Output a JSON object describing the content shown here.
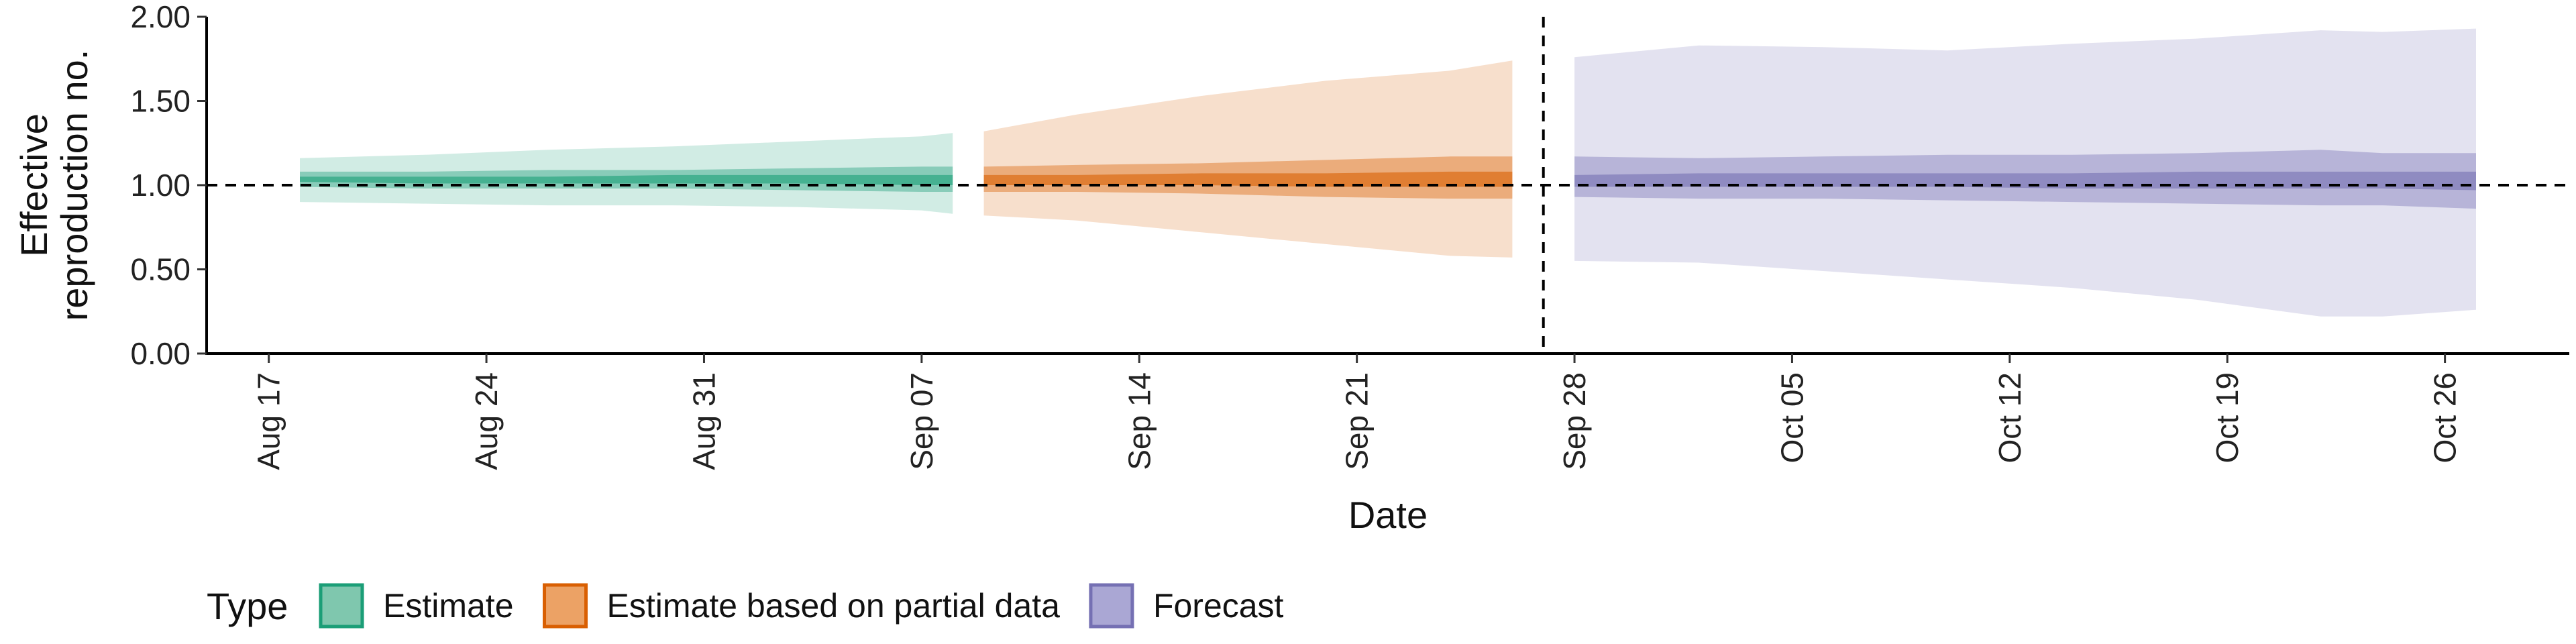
{
  "chart_data": {
    "type": "area",
    "xlabel": "Date",
    "ylabel_lines": [
      "Effective",
      "reproduction no."
    ],
    "ylim": [
      0,
      2
    ],
    "xlim": [
      "2020-08-15",
      "2020-10-30"
    ],
    "y_ticks": [
      0,
      0.5,
      1,
      1.5,
      2
    ],
    "y_tick_labels": [
      "0.00",
      "0.50",
      "1.00",
      "1.50",
      "2.00"
    ],
    "x_ticks": [
      "2020-08-17",
      "2020-08-24",
      "2020-08-31",
      "2020-09-07",
      "2020-09-14",
      "2020-09-21",
      "2020-09-28",
      "2020-10-05",
      "2020-10-12",
      "2020-10-19",
      "2020-10-26"
    ],
    "x_tick_labels": [
      "Aug 17",
      "Aug 24",
      "Aug 31",
      "Sep 07",
      "Sep 14",
      "Sep 21",
      "Sep 28",
      "Oct 05",
      "Oct 12",
      "Oct 19",
      "Oct 26"
    ],
    "reference_line_y": 1,
    "vertical_line_date": "2020-09-27",
    "grid": false,
    "legend": {
      "title": "Type",
      "position": "bottom",
      "entries": [
        {
          "label": "Estimate",
          "fill": "#7fc7ae",
          "stroke": "#1b9e77"
        },
        {
          "label": "Estimate based on partial data",
          "fill": "#eca265",
          "stroke": "#d95f02"
        },
        {
          "label": "Forecast",
          "fill": "#aaa7d4",
          "stroke": "#7570b3"
        }
      ]
    },
    "series": [
      {
        "name": "Estimate",
        "color": "#1b9e77",
        "points": [
          {
            "date": "2020-08-18",
            "lo90": 0.9,
            "lo50": 0.99,
            "lo20": 1.02,
            "hi20": 1.05,
            "hi50": 1.08,
            "hi90": 1.16
          },
          {
            "date": "2020-08-22",
            "lo90": 0.89,
            "lo50": 0.98,
            "lo20": 1.01,
            "hi20": 1.05,
            "hi50": 1.08,
            "hi90": 1.18
          },
          {
            "date": "2020-08-26",
            "lo90": 0.88,
            "lo50": 0.98,
            "lo20": 1.01,
            "hi20": 1.05,
            "hi50": 1.09,
            "hi90": 1.21
          },
          {
            "date": "2020-08-30",
            "lo90": 0.88,
            "lo50": 0.98,
            "lo20": 1.01,
            "hi20": 1.06,
            "hi50": 1.09,
            "hi90": 1.23
          },
          {
            "date": "2020-09-03",
            "lo90": 0.87,
            "lo50": 0.97,
            "lo20": 1.01,
            "hi20": 1.06,
            "hi50": 1.1,
            "hi90": 1.26
          },
          {
            "date": "2020-09-07",
            "lo90": 0.85,
            "lo50": 0.96,
            "lo20": 1.0,
            "hi20": 1.06,
            "hi50": 1.11,
            "hi90": 1.29
          },
          {
            "date": "2020-09-08",
            "lo90": 0.83,
            "lo50": 0.96,
            "lo20": 1.0,
            "hi20": 1.06,
            "hi50": 1.11,
            "hi90": 1.31
          }
        ]
      },
      {
        "name": "Estimate based on partial data",
        "color": "#d95f02",
        "points": [
          {
            "date": "2020-09-09",
            "lo90": 0.82,
            "lo50": 0.96,
            "lo20": 1.0,
            "hi20": 1.06,
            "hi50": 1.11,
            "hi90": 1.32
          },
          {
            "date": "2020-09-12",
            "lo90": 0.79,
            "lo50": 0.96,
            "lo20": 1.0,
            "hi20": 1.06,
            "hi50": 1.12,
            "hi90": 1.42
          },
          {
            "date": "2020-09-16",
            "lo90": 0.72,
            "lo50": 0.95,
            "lo20": 1.0,
            "hi20": 1.07,
            "hi50": 1.13,
            "hi90": 1.53
          },
          {
            "date": "2020-09-20",
            "lo90": 0.65,
            "lo50": 0.93,
            "lo20": 0.99,
            "hi20": 1.07,
            "hi50": 1.15,
            "hi90": 1.62
          },
          {
            "date": "2020-09-24",
            "lo90": 0.58,
            "lo50": 0.92,
            "lo20": 0.99,
            "hi20": 1.08,
            "hi50": 1.17,
            "hi90": 1.68
          },
          {
            "date": "2020-09-26",
            "lo90": 0.57,
            "lo50": 0.92,
            "lo20": 0.99,
            "hi20": 1.08,
            "hi50": 1.17,
            "hi90": 1.74
          }
        ]
      },
      {
        "name": "Forecast",
        "color": "#7570b3",
        "points": [
          {
            "date": "2020-09-28",
            "lo90": 0.55,
            "lo50": 0.93,
            "lo20": 0.99,
            "hi20": 1.06,
            "hi50": 1.17,
            "hi90": 1.76
          },
          {
            "date": "2020-10-02",
            "lo90": 0.54,
            "lo50": 0.92,
            "lo20": 0.99,
            "hi20": 1.07,
            "hi50": 1.16,
            "hi90": 1.83
          },
          {
            "date": "2020-10-06",
            "lo90": 0.49,
            "lo50": 0.92,
            "lo20": 0.99,
            "hi20": 1.07,
            "hi50": 1.17,
            "hi90": 1.82
          },
          {
            "date": "2020-10-10",
            "lo90": 0.44,
            "lo50": 0.91,
            "lo20": 0.99,
            "hi20": 1.07,
            "hi50": 1.18,
            "hi90": 1.8
          },
          {
            "date": "2020-10-14",
            "lo90": 0.39,
            "lo50": 0.9,
            "lo20": 0.98,
            "hi20": 1.07,
            "hi50": 1.18,
            "hi90": 1.84
          },
          {
            "date": "2020-10-18",
            "lo90": 0.32,
            "lo50": 0.89,
            "lo20": 0.98,
            "hi20": 1.08,
            "hi50": 1.19,
            "hi90": 1.87
          },
          {
            "date": "2020-10-22",
            "lo90": 0.22,
            "lo50": 0.88,
            "lo20": 0.98,
            "hi20": 1.08,
            "hi50": 1.21,
            "hi90": 1.92
          },
          {
            "date": "2020-10-24",
            "lo90": 0.22,
            "lo50": 0.88,
            "lo20": 0.98,
            "hi20": 1.08,
            "hi50": 1.19,
            "hi90": 1.91
          },
          {
            "date": "2020-10-27",
            "lo90": 0.26,
            "lo50": 0.86,
            "lo20": 0.97,
            "hi20": 1.08,
            "hi50": 1.19,
            "hi90": 1.93
          }
        ]
      }
    ]
  }
}
